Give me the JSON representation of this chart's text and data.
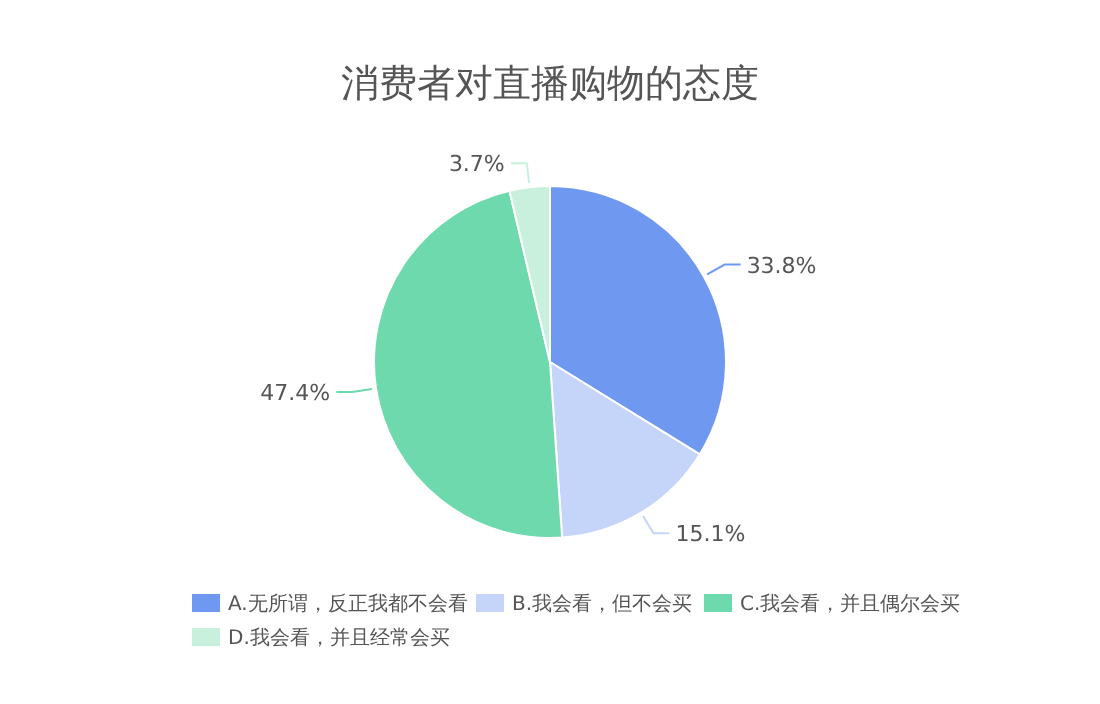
{
  "chart_data": {
    "type": "pie",
    "title": "消费者对直播购物的态度",
    "categories": [
      "A.无所谓，反正我都不会看",
      "B.我会看，但不会买",
      "C.我会看，并且偶尔会买",
      "D.我会看，并且经常会买"
    ],
    "values": [
      33.8,
      15.1,
      47.4,
      3.7
    ],
    "colors": [
      "#6f98f0",
      "#c5d5fa",
      "#6ed9ad",
      "#c8f0dc"
    ],
    "value_labels": [
      "33.8%",
      "15.1%",
      "47.4%",
      "3.7%"
    ],
    "legend": "bottom"
  }
}
